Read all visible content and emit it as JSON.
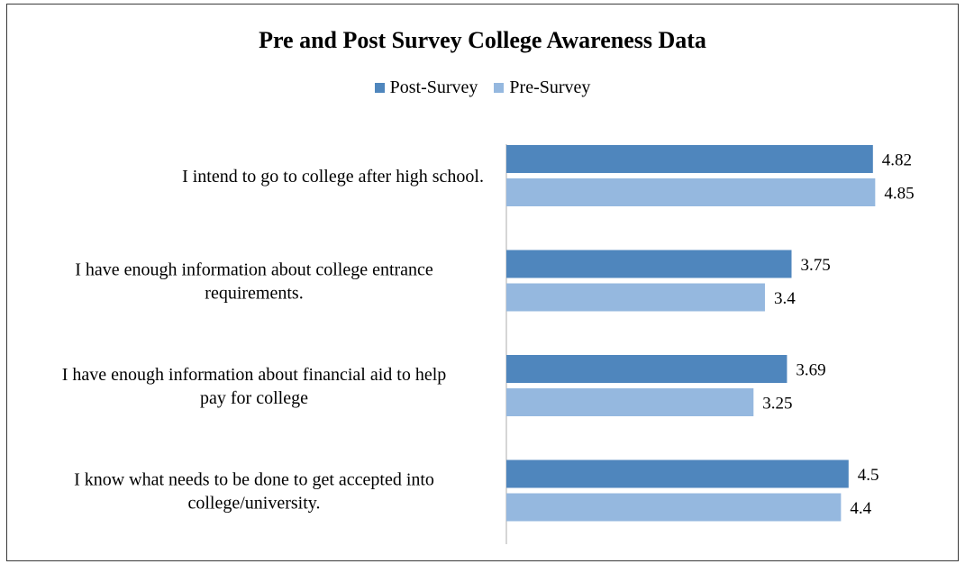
{
  "chart_data": {
    "type": "bar",
    "orientation": "horizontal",
    "title": "Pre and Post Survey College Awareness Data",
    "categories": [
      [
        "I intend to go to college after high school."
      ],
      [
        "I have enough information about college entrance",
        "requirements."
      ],
      [
        "I have enough information about financial aid to help",
        "pay for college"
      ],
      [
        "I know what needs to be done to get accepted into",
        "college/university."
      ]
    ],
    "series": [
      {
        "name": "Post-Survey",
        "color": "#4f86bd",
        "values": [
          4.82,
          3.75,
          3.69,
          4.5
        ]
      },
      {
        "name": "Pre-Survey",
        "color": "#95b8df",
        "values": [
          4.85,
          3.4,
          3.25,
          4.4
        ]
      }
    ],
    "xlim": [
      0,
      5
    ],
    "grid": false,
    "legend_position": "top-center"
  }
}
